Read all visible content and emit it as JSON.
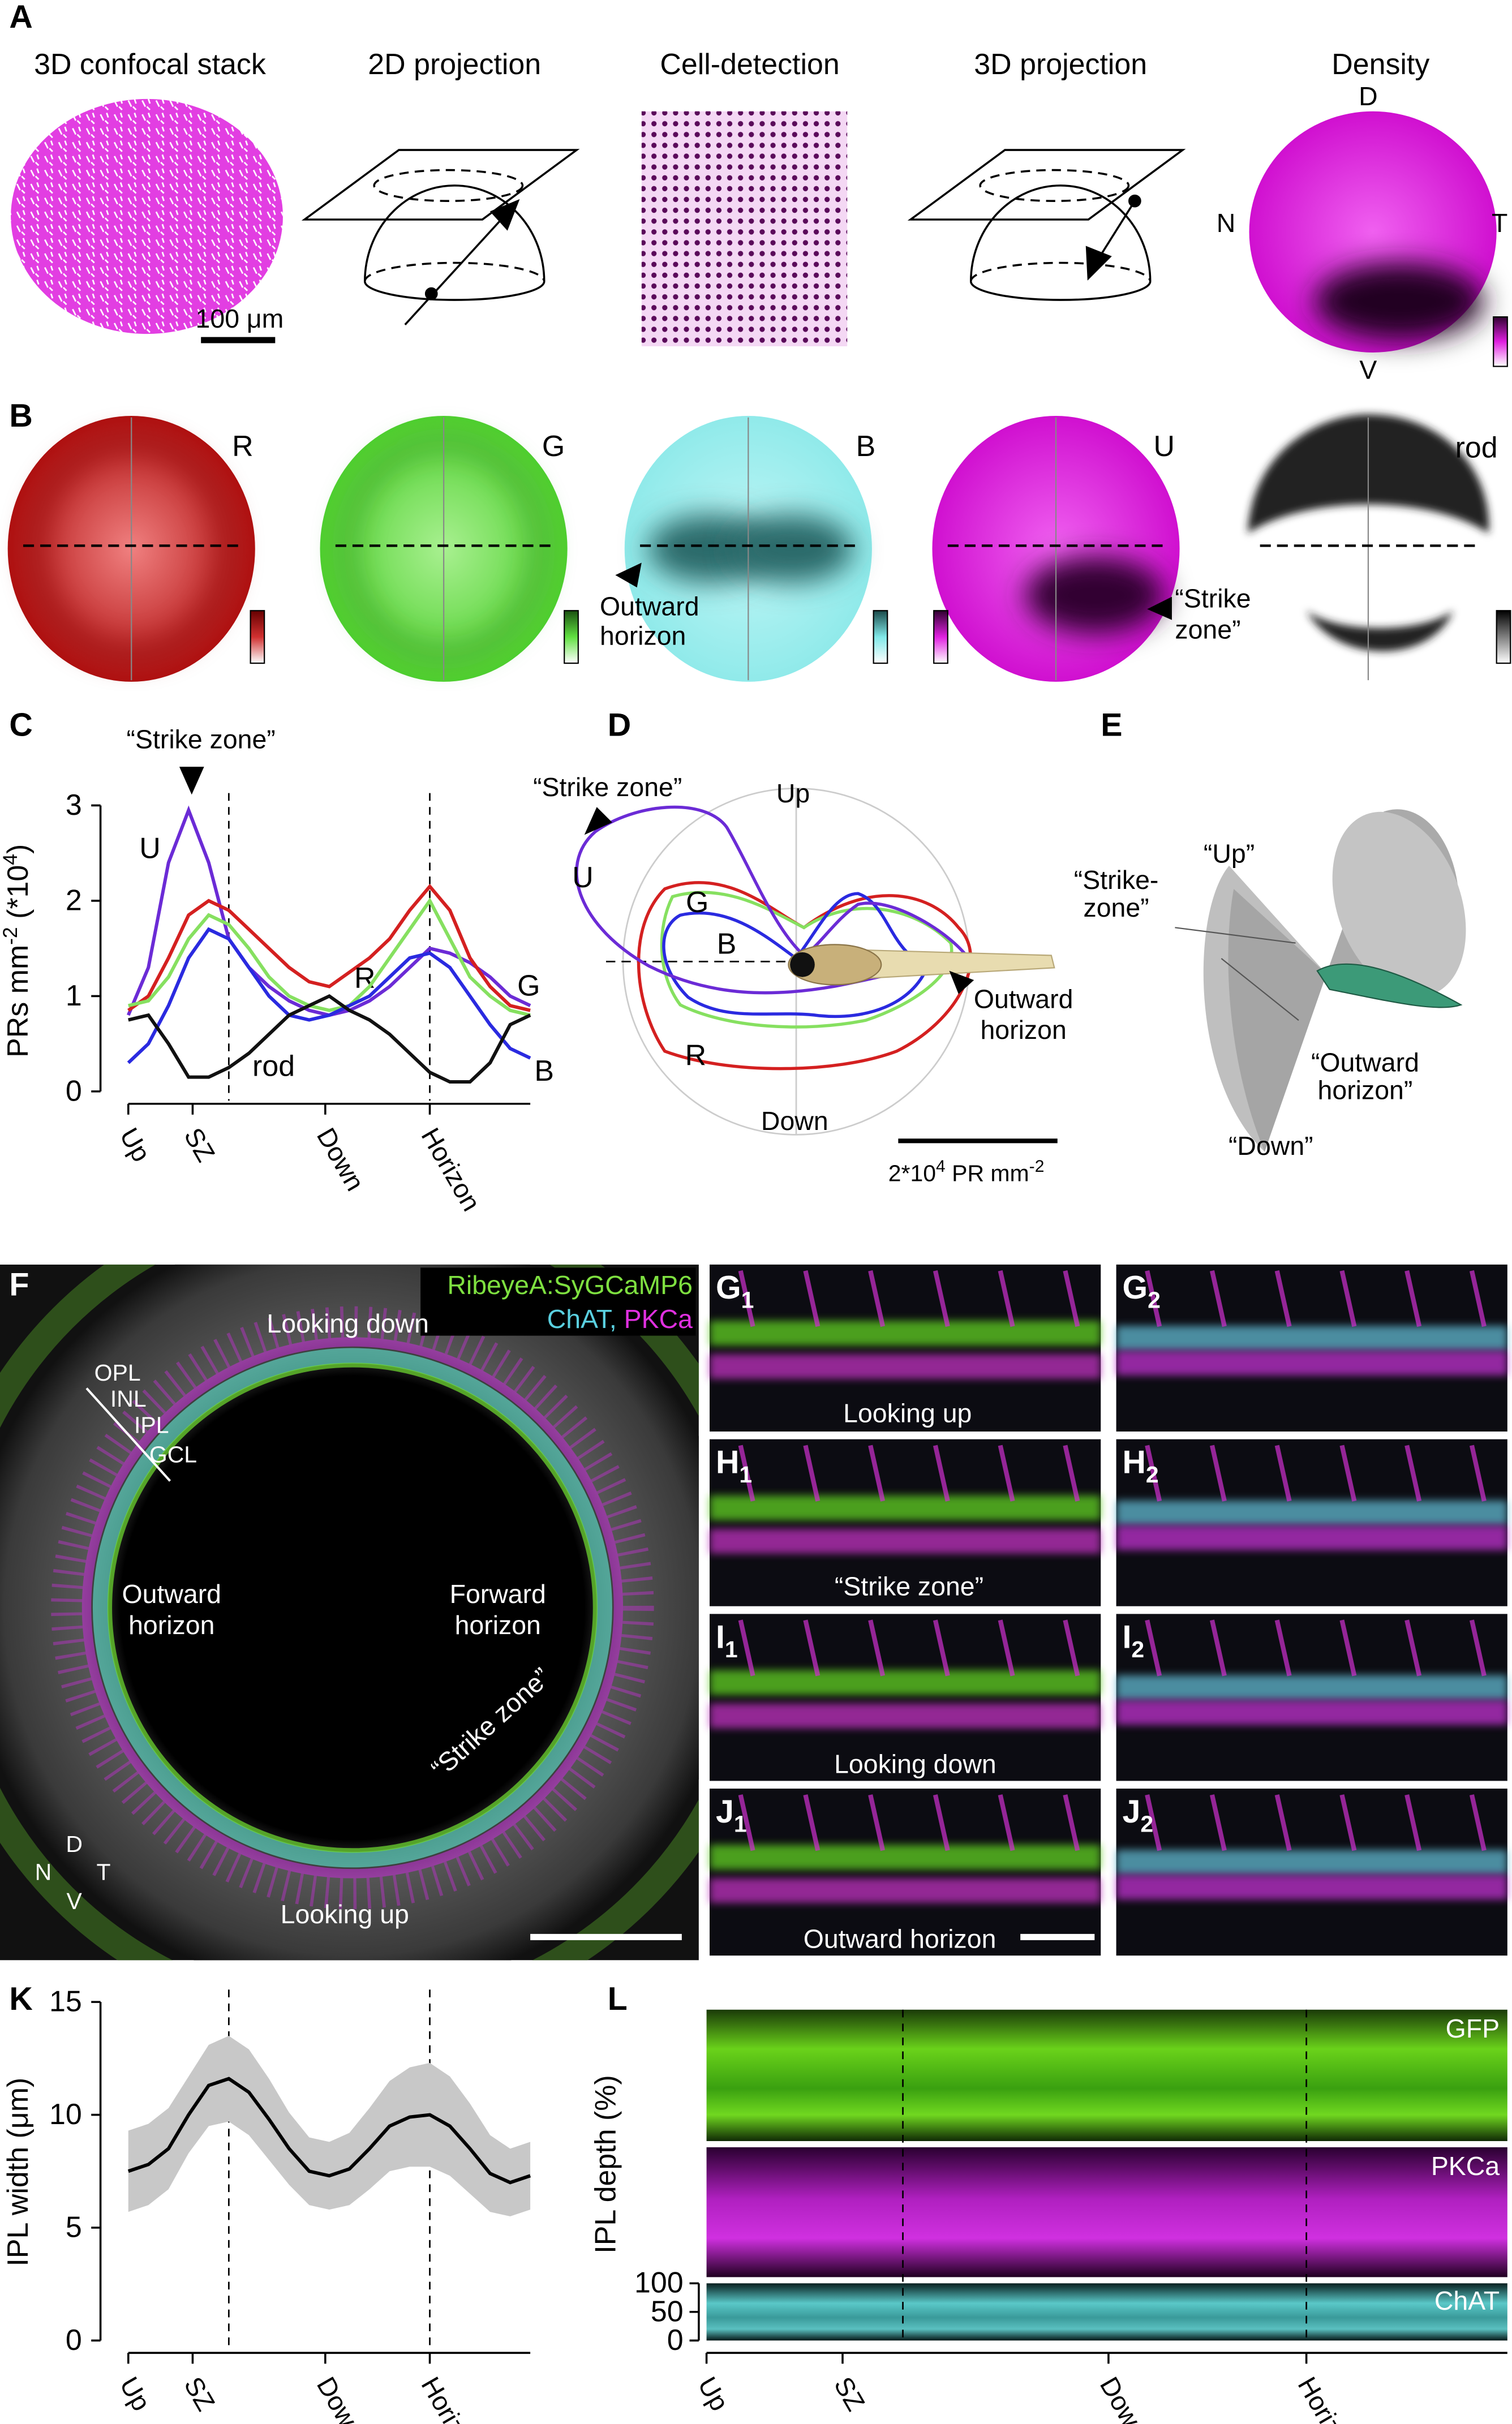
{
  "panel_labels": {
    "a": "A",
    "b": "B",
    "c": "C",
    "d": "D",
    "e": "E",
    "f": "F",
    "k": "K",
    "l": "L"
  },
  "panel_a": {
    "titles": [
      "3D confocal stack",
      "2D projection",
      "Cell-detection",
      "3D projection",
      "Density"
    ],
    "scale_bar": "100 μm",
    "orientation": [
      "D",
      "N",
      "T",
      "V"
    ]
  },
  "panel_b": {
    "channels": [
      "R",
      "G",
      "B",
      "U",
      "rod"
    ],
    "outward": [
      "Outward",
      "horizon"
    ],
    "strike": [
      "“Strike",
      "zone”"
    ]
  },
  "chart_data": [
    {
      "type": "line",
      "annotation": "“Strike zone”",
      "ylabel_parts": [
        "PRs mm",
        "-2",
        " (*10",
        "4",
        ")"
      ],
      "x": [
        0,
        5,
        10,
        15,
        20,
        25,
        30,
        35,
        40,
        45,
        50,
        55,
        60,
        65,
        70,
        75,
        80,
        85,
        90,
        95,
        100
      ],
      "xlim": [
        0,
        100
      ],
      "xticks": [
        {
          "value": 0,
          "label": "Up"
        },
        {
          "value": 16,
          "label": "SZ"
        },
        {
          "value": 49,
          "label": "Down"
        },
        {
          "value": 75,
          "label": "Horizon"
        }
      ],
      "ylim": [
        0,
        3
      ],
      "yticks": [
        0,
        1,
        2,
        3
      ],
      "vlines": [
        25,
        75
      ],
      "series": [
        {
          "name": "U",
          "color": "#6b2bd6",
          "values": [
            0.8,
            1.3,
            2.4,
            2.95,
            2.4,
            1.6,
            1.3,
            1.1,
            0.95,
            0.85,
            0.8,
            0.85,
            0.95,
            1.1,
            1.3,
            1.5,
            1.45,
            1.35,
            1.2,
            1.0,
            0.9
          ]
        },
        {
          "name": "R",
          "color": "#d42020",
          "values": [
            0.85,
            1.0,
            1.4,
            1.85,
            2.0,
            1.9,
            1.7,
            1.5,
            1.3,
            1.15,
            1.1,
            1.25,
            1.4,
            1.6,
            1.9,
            2.15,
            1.9,
            1.4,
            1.1,
            0.9,
            0.85
          ]
        },
        {
          "name": "G",
          "color": "#86e060",
          "values": [
            0.9,
            0.95,
            1.2,
            1.6,
            1.85,
            1.75,
            1.5,
            1.2,
            1.0,
            0.9,
            0.85,
            0.9,
            1.1,
            1.4,
            1.7,
            2.0,
            1.6,
            1.2,
            1.0,
            0.85,
            0.8
          ]
        },
        {
          "name": "B",
          "color": "#2a2ae0",
          "values": [
            0.3,
            0.5,
            0.9,
            1.4,
            1.7,
            1.6,
            1.3,
            1.0,
            0.8,
            0.75,
            0.8,
            0.9,
            1.0,
            1.2,
            1.4,
            1.45,
            1.3,
            1.0,
            0.7,
            0.45,
            0.35
          ]
        },
        {
          "name": "rod",
          "color": "#111111",
          "values": [
            0.75,
            0.8,
            0.5,
            0.15,
            0.15,
            0.25,
            0.4,
            0.6,
            0.8,
            0.9,
            1.0,
            0.85,
            0.75,
            0.6,
            0.4,
            0.2,
            0.1,
            0.1,
            0.3,
            0.7,
            0.8
          ]
        }
      ]
    },
    {
      "type": "line_band",
      "ylabel": "IPL width (μm)",
      "x": [
        0,
        5,
        10,
        15,
        20,
        25,
        30,
        35,
        40,
        45,
        50,
        55,
        60,
        65,
        70,
        75,
        80,
        85,
        90,
        95,
        100
      ],
      "xlim": [
        0,
        100
      ],
      "xticks": [
        {
          "value": 0,
          "label": "Up"
        },
        {
          "value": 16,
          "label": "SZ"
        },
        {
          "value": 49,
          "label": "Down"
        },
        {
          "value": 75,
          "label": "Horizon"
        }
      ],
      "ylim": [
        0,
        15
      ],
      "yticks": [
        0,
        5,
        10,
        15
      ],
      "vlines": [
        25,
        75
      ],
      "color": "#000000",
      "band_color": "#c8c8c8",
      "values": [
        7.5,
        7.8,
        8.5,
        10,
        11.3,
        11.6,
        11,
        9.8,
        8.5,
        7.5,
        7.3,
        7.6,
        8.5,
        9.5,
        9.9,
        10,
        9.5,
        8.5,
        7.4,
        7.0,
        7.3
      ],
      "errors": [
        1.8,
        1.8,
        1.8,
        1.7,
        1.8,
        1.9,
        1.9,
        1.8,
        1.6,
        1.5,
        1.5,
        1.6,
        1.8,
        2.0,
        2.2,
        2.3,
        2.2,
        2.0,
        1.7,
        1.5,
        1.5
      ]
    }
  ],
  "panel_d": {
    "up": "Up",
    "down": "Down",
    "strike": "“Strike zone”",
    "curves": [
      "U",
      "G",
      "B",
      "R"
    ],
    "outward": [
      "Outward",
      "horizon"
    ],
    "scale_parts": [
      "2*10",
      "4",
      " PR mm",
      "-2"
    ]
  },
  "panel_e": {
    "up": "“Up”",
    "strike": [
      "“Strike-",
      "zone”"
    ],
    "outward": [
      "“Outward",
      "horizon”"
    ],
    "down": "“Down”"
  },
  "panel_f": {
    "legend": [
      "RibeyeA:SyGCaMP6",
      "ChAT, ",
      "PKCa"
    ],
    "looking_down": "Looking down",
    "layers": [
      "OPL",
      "INL",
      "IPL",
      "GCL"
    ],
    "outward": [
      "Outward",
      "horizon"
    ],
    "forward": [
      "Forward",
      "horizon"
    ],
    "strike": "“Strike zone”",
    "looking_up": "Looking up",
    "orientation": [
      "D",
      "N",
      "T",
      "V"
    ]
  },
  "panel_gj": {
    "labels": [
      [
        "G",
        "1"
      ],
      [
        "G",
        "2"
      ],
      [
        "H",
        "1"
      ],
      [
        "H",
        "2"
      ],
      [
        "I",
        "1"
      ],
      [
        "I",
        "2"
      ],
      [
        "J",
        "1"
      ],
      [
        "J",
        "2"
      ]
    ],
    "captions": [
      "Looking up",
      "“Strike zone”",
      "Looking down",
      "Outward horizon"
    ]
  },
  "panel_l": {
    "ylabel": "IPL depth (%)",
    "strips": [
      "GFP",
      "PKCa",
      "ChAT"
    ],
    "ylim": [
      0,
      100
    ],
    "yticks": [
      0,
      50,
      100
    ],
    "xticks": [
      "Up",
      "SZ",
      "Down",
      "Horizon"
    ]
  }
}
